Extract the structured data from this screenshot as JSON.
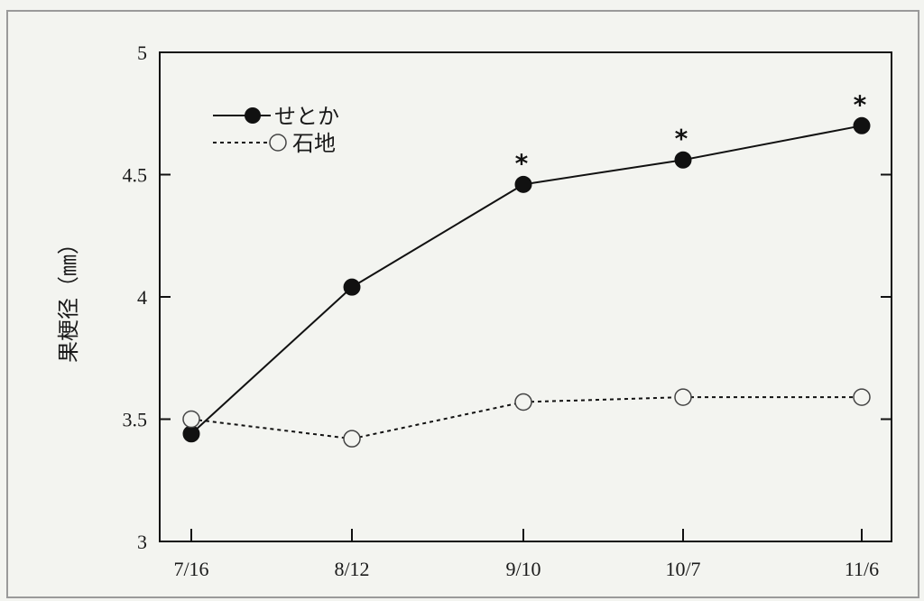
{
  "chart_data": {
    "type": "line",
    "categories": [
      "7/16",
      "8/12",
      "9/10",
      "10/7",
      "11/6"
    ],
    "series": [
      {
        "name": "せとか",
        "values": [
          3.44,
          4.04,
          4.46,
          4.56,
          4.7
        ],
        "style": "solid",
        "marker": "filled-circle",
        "color": "#111111",
        "significance": [
          "",
          "",
          "*",
          "*",
          "*"
        ]
      },
      {
        "name": "石地",
        "values": [
          3.5,
          3.42,
          3.57,
          3.59,
          3.59
        ],
        "style": "dotted",
        "marker": "open-circle",
        "color": "#111111",
        "significance": [
          "",
          "",
          "",
          "",
          ""
        ]
      }
    ],
    "yticks": [
      "3",
      "3.5",
      "4",
      "4.5",
      "5"
    ],
    "ylabel": "果梗径（㎜）",
    "xlabel": "",
    "title": "",
    "ylim": [
      3,
      5
    ],
    "grid": false,
    "legend_position": "top-left"
  }
}
